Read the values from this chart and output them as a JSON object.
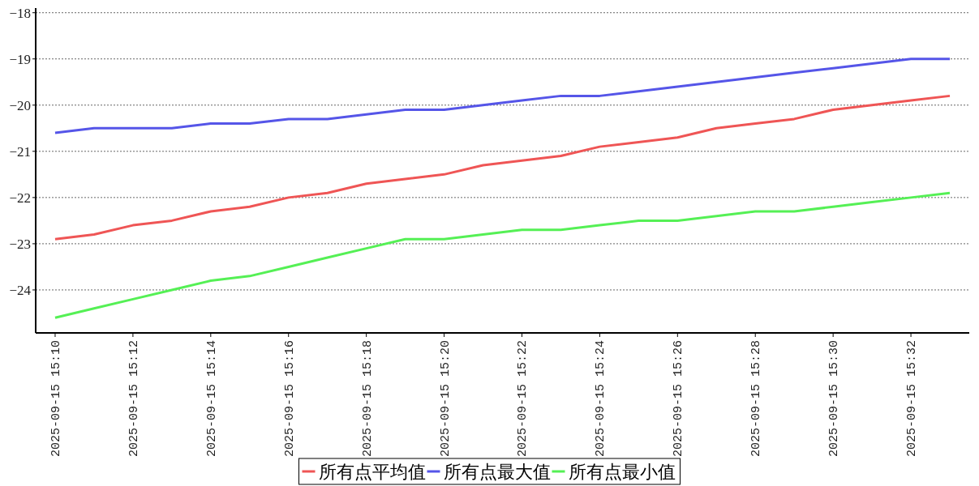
{
  "chart_data": {
    "type": "line",
    "x": [
      "2025-09-15T15:10",
      "2025-09-15T15:11",
      "2025-09-15T15:12",
      "2025-09-15T15:13",
      "2025-09-15T15:14",
      "2025-09-15T15:15",
      "2025-09-15T15:16",
      "2025-09-15T15:17",
      "2025-09-15T15:18",
      "2025-09-15T15:19",
      "2025-09-15T15:20",
      "2025-09-15T15:21",
      "2025-09-15T15:22",
      "2025-09-15T15:23",
      "2025-09-15T15:24",
      "2025-09-15T15:25",
      "2025-09-15T15:26",
      "2025-09-15T15:27",
      "2025-09-15T15:28",
      "2025-09-15T15:29",
      "2025-09-15T15:30",
      "2025-09-15T15:31",
      "2025-09-15T15:32",
      "2025-09-15T15:33"
    ],
    "series": [
      {
        "name": "所有点平均值",
        "color": "#ef5555",
        "values": [
          -22.9,
          -22.8,
          -22.6,
          -22.5,
          -22.3,
          -22.2,
          -22.0,
          -21.9,
          -21.7,
          -21.6,
          -21.5,
          -21.3,
          -21.2,
          -21.1,
          -20.9,
          -20.8,
          -20.7,
          -20.5,
          -20.4,
          -20.3,
          -20.1,
          -20.0,
          -19.9,
          -19.8
        ]
      },
      {
        "name": "所有点最大值",
        "color": "#5555e8",
        "values": [
          -20.6,
          -20.5,
          -20.5,
          -20.5,
          -20.4,
          -20.4,
          -20.3,
          -20.3,
          -20.2,
          -20.1,
          -20.1,
          -20.0,
          -19.9,
          -19.8,
          -19.8,
          -19.7,
          -19.6,
          -19.5,
          -19.4,
          -19.3,
          -19.2,
          -19.1,
          -19.0,
          -19.0
        ]
      },
      {
        "name": "所有点最小值",
        "color": "#55f055",
        "values": [
          -24.6,
          -24.4,
          -24.2,
          -24.0,
          -23.8,
          -23.7,
          -23.5,
          -23.3,
          -23.1,
          -22.9,
          -22.9,
          -22.8,
          -22.7,
          -22.7,
          -22.6,
          -22.5,
          -22.5,
          -22.4,
          -22.3,
          -22.3,
          -22.2,
          -22.1,
          -22.0,
          -21.9
        ]
      }
    ],
    "xlim": [
      "2025-09-15T15:09:30",
      "2025-09-15T15:33:30"
    ],
    "xticks": [
      {
        "value": "2025-09-15T15:10",
        "label": "2025-09-15 15:10"
      },
      {
        "value": "2025-09-15T15:12",
        "label": "2025-09-15 15:12"
      },
      {
        "value": "2025-09-15T15:14",
        "label": "2025-09-15 15:14"
      },
      {
        "value": "2025-09-15T15:16",
        "label": "2025-09-15 15:16"
      },
      {
        "value": "2025-09-15T15:18",
        "label": "2025-09-15 15:18"
      },
      {
        "value": "2025-09-15T15:20",
        "label": "2025-09-15 15:20"
      },
      {
        "value": "2025-09-15T15:22",
        "label": "2025-09-15 15:22"
      },
      {
        "value": "2025-09-15T15:24",
        "label": "2025-09-15 15:24"
      },
      {
        "value": "2025-09-15T15:26",
        "label": "2025-09-15 15:26"
      },
      {
        "value": "2025-09-15T15:28",
        "label": "2025-09-15 15:28"
      },
      {
        "value": "2025-09-15T15:30",
        "label": "2025-09-15 15:30"
      },
      {
        "value": "2025-09-15T15:32",
        "label": "2025-09-15 15:32"
      }
    ],
    "ylim": [
      -24.93,
      -17.9
    ],
    "yticks": [
      {
        "value": -24,
        "label": "−24"
      },
      {
        "value": -23,
        "label": "−23"
      },
      {
        "value": -22,
        "label": "−22"
      },
      {
        "value": -21,
        "label": "−21"
      },
      {
        "value": -20,
        "label": "−20"
      },
      {
        "value": -19,
        "label": "−19"
      },
      {
        "value": -18,
        "label": "−18"
      }
    ],
    "grid": "y",
    "legend": "bottom"
  }
}
